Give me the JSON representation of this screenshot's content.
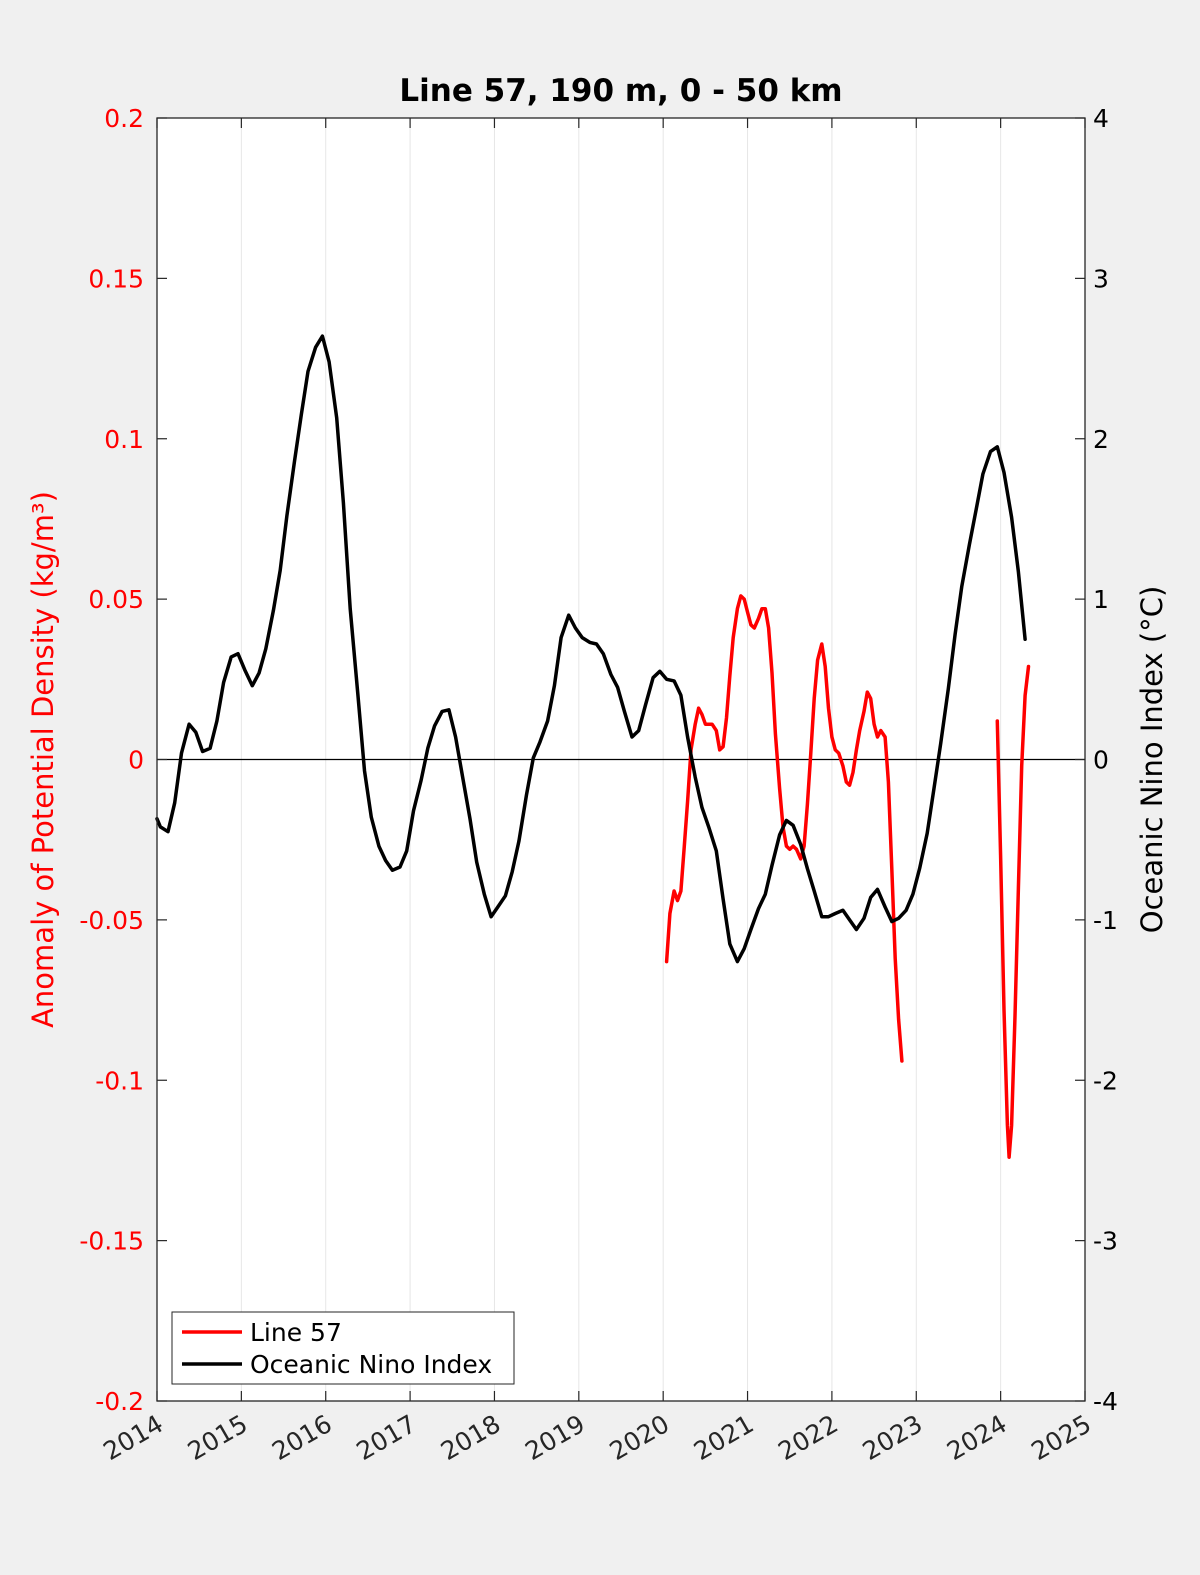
{
  "chart_data": {
    "type": "line",
    "title": "Line 57, 190 m, 0 - 50 km",
    "xlabel": "",
    "ylabel_left": "Anomaly of Potential Density (kg/m³)",
    "ylabel_right": "Oceanic Nino Index (°C)",
    "xlim": [
      2014,
      2025
    ],
    "ylim_left": [
      -0.2,
      0.2
    ],
    "ylim_right": [
      -4,
      4
    ],
    "x_ticks": [
      "2014",
      "2015",
      "2016",
      "2017",
      "2018",
      "2019",
      "2020",
      "2021",
      "2022",
      "2023",
      "2024",
      "2025"
    ],
    "y_left_ticks": [
      "0.2",
      "0.15",
      "0.1",
      "0.05",
      "0",
      "-0.05",
      "-0.1",
      "-0.15",
      "-0.2"
    ],
    "y_right_ticks": [
      "4",
      "3",
      "2",
      "1",
      "0",
      "-1",
      "-2",
      "-3",
      "-4"
    ],
    "grid": "vertical",
    "zero_line": true,
    "legend_position": "bottom-left",
    "series": [
      {
        "name": "Line 57",
        "axis": "left",
        "color": "#ff0000",
        "segments": [
          [
            [
              2020.04,
              -0.063
            ],
            [
              2020.08,
              -0.048
            ],
            [
              2020.13,
              -0.041
            ],
            [
              2020.17,
              -0.044
            ],
            [
              2020.21,
              -0.041
            ],
            [
              2020.25,
              -0.027
            ],
            [
              2020.29,
              -0.013
            ],
            [
              2020.33,
              0.003
            ],
            [
              2020.38,
              0.011
            ],
            [
              2020.42,
              0.016
            ],
            [
              2020.46,
              0.014
            ],
            [
              2020.5,
              0.011
            ],
            [
              2020.54,
              0.011
            ],
            [
              2020.58,
              0.011
            ],
            [
              2020.63,
              0.009
            ],
            [
              2020.67,
              0.003
            ],
            [
              2020.71,
              0.004
            ],
            [
              2020.75,
              0.013
            ],
            [
              2020.79,
              0.026
            ],
            [
              2020.83,
              0.038
            ],
            [
              2020.88,
              0.047
            ],
            [
              2020.92,
              0.051
            ],
            [
              2020.96,
              0.05
            ],
            [
              2021.0,
              0.046
            ],
            [
              2021.04,
              0.042
            ],
            [
              2021.08,
              0.041
            ],
            [
              2021.13,
              0.044
            ],
            [
              2021.17,
              0.047
            ],
            [
              2021.21,
              0.047
            ],
            [
              2021.25,
              0.041
            ],
            [
              2021.29,
              0.027
            ],
            [
              2021.33,
              0.008
            ],
            [
              2021.38,
              -0.009
            ],
            [
              2021.42,
              -0.021
            ],
            [
              2021.46,
              -0.027
            ],
            [
              2021.5,
              -0.028
            ],
            [
              2021.54,
              -0.027
            ],
            [
              2021.58,
              -0.028
            ],
            [
              2021.63,
              -0.031
            ],
            [
              2021.67,
              -0.027
            ],
            [
              2021.71,
              -0.014
            ],
            [
              2021.75,
              0.002
            ],
            [
              2021.79,
              0.019
            ],
            [
              2021.83,
              0.031
            ],
            [
              2021.88,
              0.036
            ],
            [
              2021.92,
              0.029
            ],
            [
              2021.96,
              0.016
            ],
            [
              2022.0,
              0.007
            ],
            [
              2022.04,
              0.003
            ],
            [
              2022.08,
              0.002
            ],
            [
              2022.13,
              -0.002
            ],
            [
              2022.17,
              -0.007
            ],
            [
              2022.21,
              -0.008
            ],
            [
              2022.25,
              -0.004
            ],
            [
              2022.29,
              0.003
            ],
            [
              2022.33,
              0.009
            ],
            [
              2022.38,
              0.015
            ],
            [
              2022.42,
              0.021
            ],
            [
              2022.46,
              0.019
            ],
            [
              2022.5,
              0.011
            ],
            [
              2022.54,
              0.007
            ],
            [
              2022.58,
              0.009
            ],
            [
              2022.63,
              0.007
            ],
            [
              2022.67,
              -0.007
            ],
            [
              2022.71,
              -0.034
            ],
            [
              2022.75,
              -0.062
            ],
            [
              2022.79,
              -0.081
            ],
            [
              2022.83,
              -0.094
            ]
          ],
          [
            [
              2023.96,
              0.012
            ],
            [
              2024.0,
              -0.03
            ],
            [
              2024.04,
              -0.078
            ],
            [
              2024.08,
              -0.114
            ],
            [
              2024.1,
              -0.124
            ],
            [
              2024.13,
              -0.114
            ],
            [
              2024.17,
              -0.08
            ],
            [
              2024.21,
              -0.04
            ],
            [
              2024.25,
              -0.002
            ],
            [
              2024.29,
              0.02
            ],
            [
              2024.33,
              0.029
            ]
          ]
        ]
      },
      {
        "name": "Oceanic Nino Index",
        "axis": "right",
        "color": "#000000",
        "segments": [
          [
            [
              2014.0,
              -0.37
            ],
            [
              2014.04,
              -0.42
            ],
            [
              2014.13,
              -0.45
            ],
            [
              2014.21,
              -0.27
            ],
            [
              2014.29,
              0.04
            ],
            [
              2014.38,
              0.22
            ],
            [
              2014.46,
              0.17
            ],
            [
              2014.54,
              0.05
            ],
            [
              2014.63,
              0.07
            ],
            [
              2014.71,
              0.24
            ],
            [
              2014.79,
              0.48
            ],
            [
              2014.88,
              0.64
            ],
            [
              2014.96,
              0.66
            ],
            [
              2015.04,
              0.56
            ],
            [
              2015.13,
              0.46
            ],
            [
              2015.21,
              0.54
            ],
            [
              2015.29,
              0.69
            ],
            [
              2015.38,
              0.93
            ],
            [
              2015.46,
              1.18
            ],
            [
              2015.54,
              1.52
            ],
            [
              2015.63,
              1.86
            ],
            [
              2015.71,
              2.15
            ],
            [
              2015.79,
              2.42
            ],
            [
              2015.88,
              2.57
            ],
            [
              2015.96,
              2.64
            ],
            [
              2016.04,
              2.48
            ],
            [
              2016.13,
              2.13
            ],
            [
              2016.21,
              1.6
            ],
            [
              2016.29,
              0.94
            ],
            [
              2016.38,
              0.41
            ],
            [
              2016.46,
              -0.07
            ],
            [
              2016.54,
              -0.36
            ],
            [
              2016.63,
              -0.54
            ],
            [
              2016.71,
              -0.63
            ],
            [
              2016.79,
              -0.69
            ],
            [
              2016.88,
              -0.67
            ],
            [
              2016.96,
              -0.57
            ],
            [
              2017.04,
              -0.32
            ],
            [
              2017.13,
              -0.13
            ],
            [
              2017.21,
              0.07
            ],
            [
              2017.29,
              0.21
            ],
            [
              2017.38,
              0.3
            ],
            [
              2017.46,
              0.31
            ],
            [
              2017.54,
              0.14
            ],
            [
              2017.63,
              -0.13
            ],
            [
              2017.71,
              -0.37
            ],
            [
              2017.79,
              -0.64
            ],
            [
              2017.88,
              -0.84
            ],
            [
              2017.96,
              -0.98
            ],
            [
              2018.04,
              -0.92
            ],
            [
              2018.13,
              -0.85
            ],
            [
              2018.21,
              -0.7
            ],
            [
              2018.29,
              -0.51
            ],
            [
              2018.38,
              -0.22
            ],
            [
              2018.46,
              0.01
            ],
            [
              2018.54,
              0.11
            ],
            [
              2018.63,
              0.24
            ],
            [
              2018.71,
              0.46
            ],
            [
              2018.79,
              0.76
            ],
            [
              2018.88,
              0.9
            ],
            [
              2018.96,
              0.82
            ],
            [
              2019.04,
              0.76
            ],
            [
              2019.13,
              0.73
            ],
            [
              2019.21,
              0.72
            ],
            [
              2019.29,
              0.66
            ],
            [
              2019.38,
              0.53
            ],
            [
              2019.46,
              0.45
            ],
            [
              2019.54,
              0.3
            ],
            [
              2019.63,
              0.14
            ],
            [
              2019.71,
              0.18
            ],
            [
              2019.79,
              0.34
            ],
            [
              2019.88,
              0.51
            ],
            [
              2019.96,
              0.55
            ],
            [
              2020.04,
              0.5
            ],
            [
              2020.13,
              0.49
            ],
            [
              2020.21,
              0.4
            ],
            [
              2020.29,
              0.14
            ],
            [
              2020.38,
              -0.11
            ],
            [
              2020.46,
              -0.3
            ],
            [
              2020.54,
              -0.42
            ],
            [
              2020.63,
              -0.57
            ],
            [
              2020.71,
              -0.87
            ],
            [
              2020.79,
              -1.15
            ],
            [
              2020.88,
              -1.26
            ],
            [
              2020.96,
              -1.18
            ],
            [
              2021.04,
              -1.06
            ],
            [
              2021.13,
              -0.93
            ],
            [
              2021.21,
              -0.84
            ],
            [
              2021.29,
              -0.66
            ],
            [
              2021.38,
              -0.47
            ],
            [
              2021.46,
              -0.38
            ],
            [
              2021.54,
              -0.41
            ],
            [
              2021.63,
              -0.53
            ],
            [
              2021.71,
              -0.68
            ],
            [
              2021.79,
              -0.82
            ],
            [
              2021.88,
              -0.98
            ],
            [
              2021.96,
              -0.98
            ],
            [
              2022.04,
              -0.96
            ],
            [
              2022.13,
              -0.94
            ],
            [
              2022.21,
              -1.0
            ],
            [
              2022.29,
              -1.06
            ],
            [
              2022.38,
              -0.99
            ],
            [
              2022.46,
              -0.86
            ],
            [
              2022.54,
              -0.81
            ],
            [
              2022.63,
              -0.92
            ],
            [
              2022.71,
              -1.01
            ],
            [
              2022.79,
              -0.99
            ],
            [
              2022.88,
              -0.94
            ],
            [
              2022.96,
              -0.84
            ],
            [
              2023.04,
              -0.68
            ],
            [
              2023.13,
              -0.46
            ],
            [
              2023.21,
              -0.18
            ],
            [
              2023.29,
              0.1
            ],
            [
              2023.38,
              0.44
            ],
            [
              2023.46,
              0.78
            ],
            [
              2023.54,
              1.08
            ],
            [
              2023.63,
              1.34
            ],
            [
              2023.71,
              1.56
            ],
            [
              2023.79,
              1.78
            ],
            [
              2023.88,
              1.92
            ],
            [
              2023.96,
              1.95
            ],
            [
              2024.04,
              1.79
            ],
            [
              2024.13,
              1.51
            ],
            [
              2024.21,
              1.17
            ],
            [
              2024.29,
              0.75
            ]
          ]
        ]
      }
    ]
  }
}
